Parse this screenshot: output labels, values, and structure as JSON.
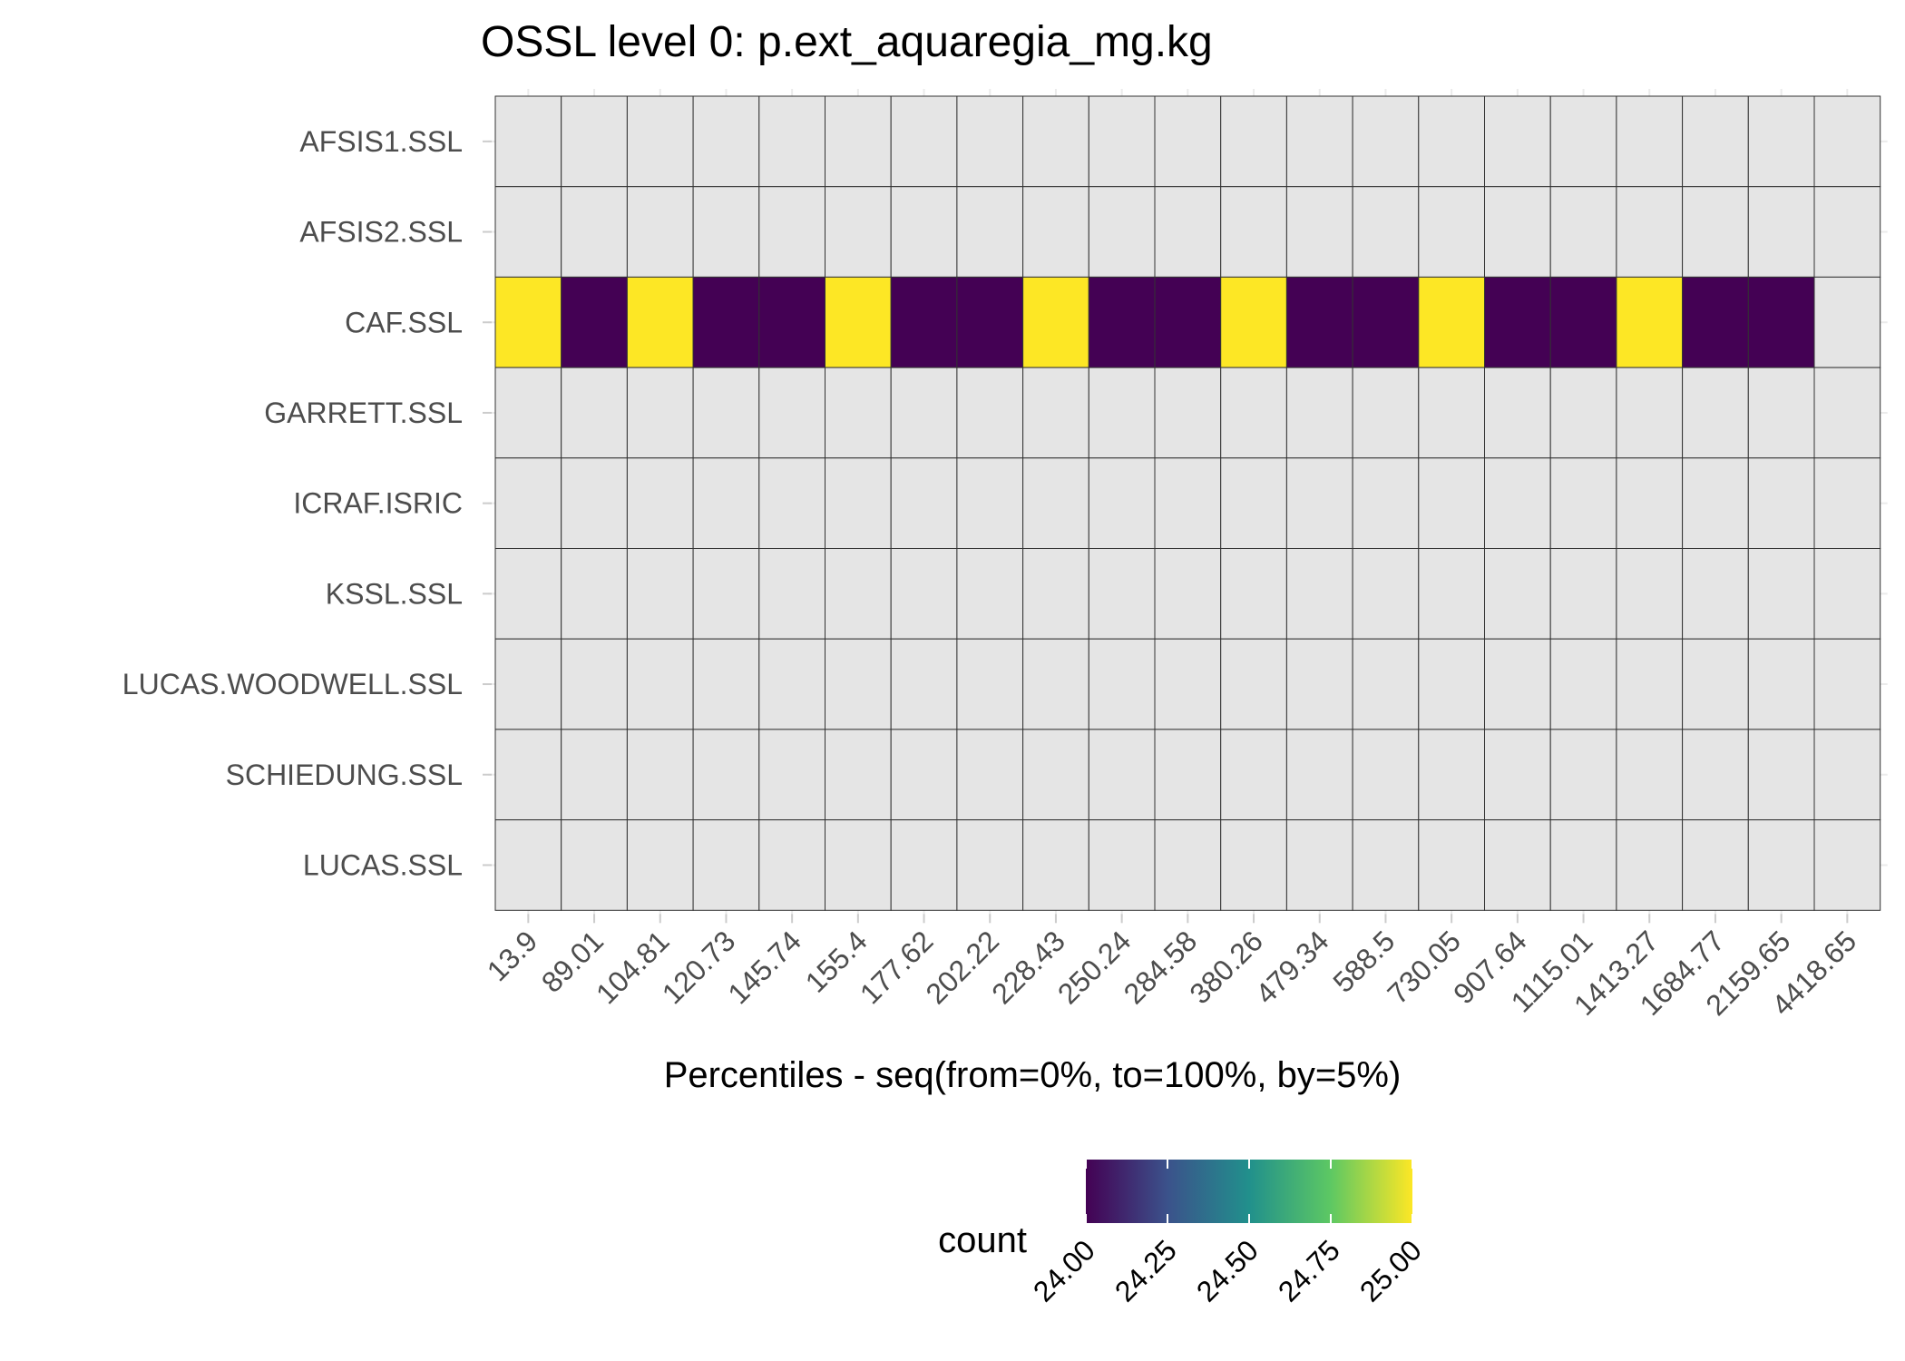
{
  "chart_data": {
    "type": "heatmap",
    "title": "OSSL level 0: p.ext_aquaregia_mg.kg",
    "xlabel": "Percentiles - seq(from=0%, to=100%, by=5%)",
    "ylabel": "",
    "x_categories": [
      "13.9",
      "89.01",
      "104.81",
      "120.73",
      "145.74",
      "155.4",
      "177.62",
      "202.22",
      "228.43",
      "250.24",
      "284.58",
      "380.26",
      "479.34",
      "588.5",
      "730.05",
      "907.64",
      "1115.01",
      "1413.27",
      "1684.77",
      "2159.65",
      "4418.65"
    ],
    "y_categories": [
      "AFSIS1.SSL",
      "AFSIS2.SSL",
      "CAF.SSL",
      "GARRETT.SSL",
      "ICRAF.ISRIC",
      "KSSL.SSL",
      "LUCAS.WOODWELL.SSL",
      "SCHIEDUNG.SSL",
      "LUCAS.SSL"
    ],
    "cells": [
      {
        "y": "CAF.SSL",
        "values": [
          25,
          24,
          25,
          24,
          24,
          25,
          24,
          24,
          25,
          24,
          24,
          25,
          24,
          24,
          25,
          24,
          24,
          25,
          24,
          24,
          null
        ]
      }
    ],
    "missing_color": "#e5e5e5",
    "legend": {
      "title": "count",
      "position": "bottom",
      "range": [
        24,
        25
      ],
      "ticks": [
        "24.00",
        "24.25",
        "24.50",
        "24.75",
        "25.00"
      ],
      "palette": [
        "#440154",
        "#3b528b",
        "#21908c",
        "#5dc863",
        "#fde725"
      ]
    },
    "grid": true
  }
}
